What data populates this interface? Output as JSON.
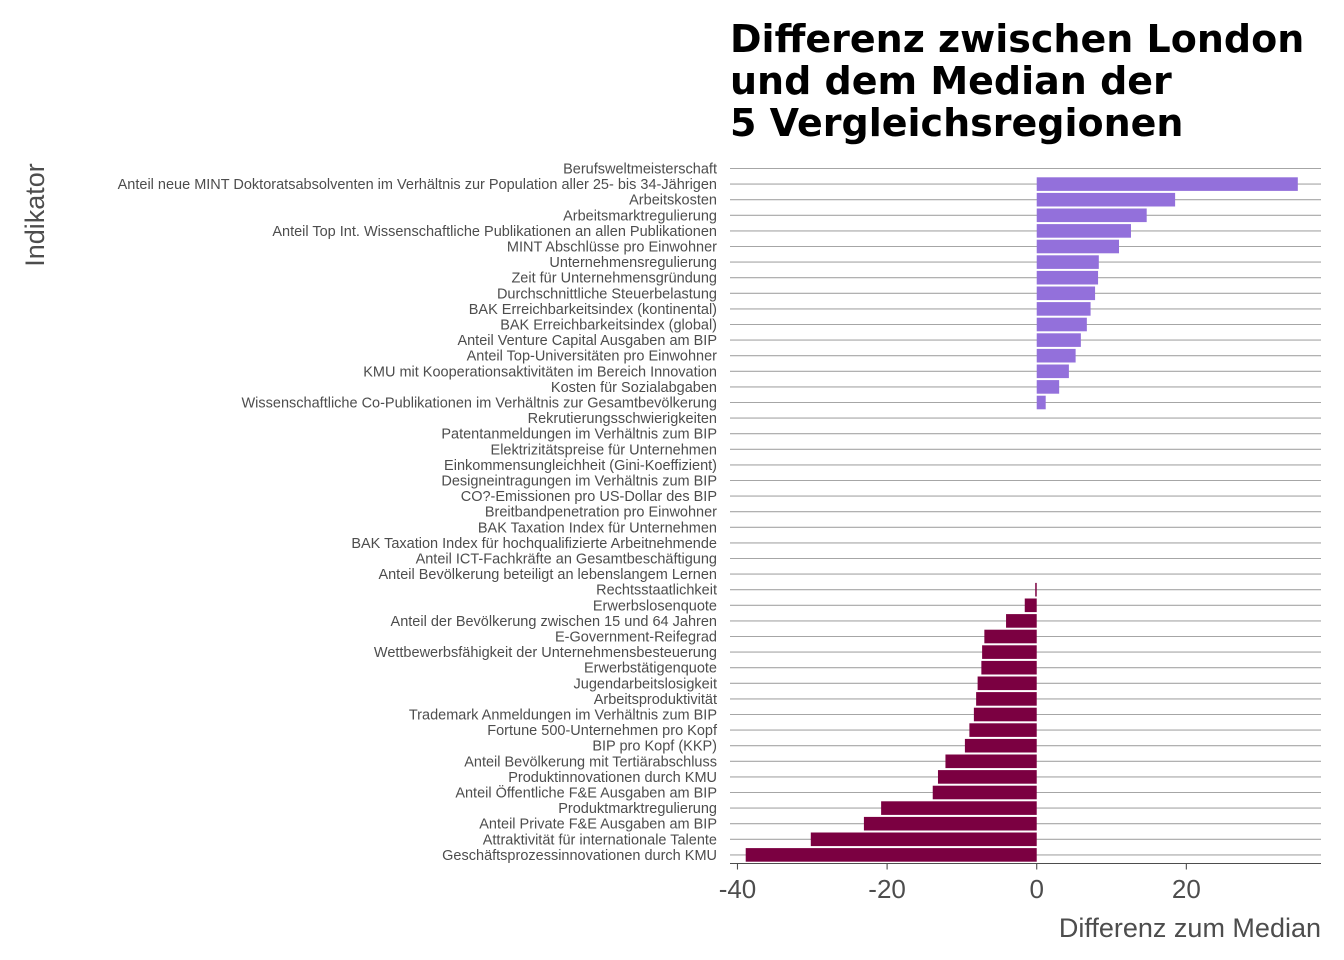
{
  "chart_data": {
    "type": "bar",
    "orientation": "horizontal",
    "title": [
      "Differenz zwischen London",
      "und dem Median der",
      "5 Vergleichsregionen"
    ],
    "xlabel": "Differenz zum Median",
    "ylabel": "Indikator",
    "xlim": [
      -41,
      38
    ],
    "xticks": [
      -40,
      -20,
      0,
      20
    ],
    "xtick_labels": [
      "-40",
      "-20",
      "0",
      "20"
    ],
    "grid": "horizontal",
    "colors": {
      "positive": "#9370DB",
      "negative": "#7B0041"
    },
    "categories": [
      "Berufsweltmeisterschaft",
      "Anteil neue MINT Doktoratsabsolventen im Verhältnis zur Population aller 25- bis 34-Jährigen",
      "Arbeitskosten",
      "Arbeitsmarktregulierung",
      "Anteil Top Int. Wissenschaftliche Publikationen an allen Publikationen",
      "MINT Abschlüsse pro Einwohner",
      "Unternehmensregulierung",
      "Zeit für Unternehmensgründung",
      "Durchschnittliche Steuerbelastung",
      "BAK Erreichbarkeitsindex (kontinental)",
      "BAK Erreichbarkeitsindex (global)",
      "Anteil Venture Capital Ausgaben am BIP",
      "Anteil Top-Universitäten pro Einwohner",
      "KMU mit Kooperationsaktivitäten im Bereich Innovation",
      "Kosten für Sozialabgaben",
      "Wissenschaftliche Co-Publikationen im Verhältnis zur Gesamtbevölkerung",
      "Rekrutierungsschwierigkeiten",
      "Patentanmeldungen im Verhältnis zum BIP",
      "Elektrizitätspreise für Unternehmen",
      "Einkommensungleichheit (Gini-Koeffizient)",
      "Designeintragungen im Verhältnis zum BIP",
      "CO?-Emissionen pro US-Dollar des BIP",
      "Breitbandpenetration pro Einwohner",
      "BAK Taxation Index für Unternehmen",
      "BAK Taxation Index für hochqualifizierte Arbeitnehmende",
      "Anteil ICT-Fachkräfte an Gesamtbeschäftigung",
      "Anteil Bevölkerung beteiligt an lebenslangem Lernen",
      "Rechtsstaatlichkeit",
      "Erwerbslosenquote",
      "Anteil der Bevölkerung zwischen 15 und 64 Jahren",
      "E-Government-Reifegrad",
      "Wettbewerbsfähigkeit der Unternehmensbesteuerung",
      "Erwerbstätigenquote",
      "Jugendarbeitslosigkeit",
      "Arbeitsproduktivität",
      "Trademark Anmeldungen im Verhältnis zum BIP",
      "Fortune 500-Unternehmen pro Kopf",
      "BIP pro Kopf (KKP)",
      "Anteil Bevölkerung mit Tertiärabschluss",
      "Produktinnovationen durch KMU",
      "Anteil Öffentliche F&E Ausgaben am BIP",
      "Produktmarktregulierung",
      "Anteil Private F&E Ausgaben am BIP",
      "Attraktivität für internationale Talente",
      "Geschäftsprozessinnovationen durch KMU"
    ],
    "values": [
      null,
      34.9,
      18.5,
      14.7,
      12.6,
      11.0,
      8.3,
      8.2,
      7.8,
      7.2,
      6.7,
      5.9,
      5.2,
      4.3,
      3.0,
      1.2,
      null,
      null,
      null,
      null,
      null,
      null,
      null,
      null,
      null,
      null,
      null,
      -0.2,
      -1.6,
      -4.1,
      -7.0,
      -7.3,
      -7.4,
      -7.9,
      -8.1,
      -8.4,
      -9.0,
      -9.6,
      -12.2,
      -13.2,
      -13.9,
      -20.8,
      -23.1,
      -30.2,
      -38.9
    ]
  }
}
